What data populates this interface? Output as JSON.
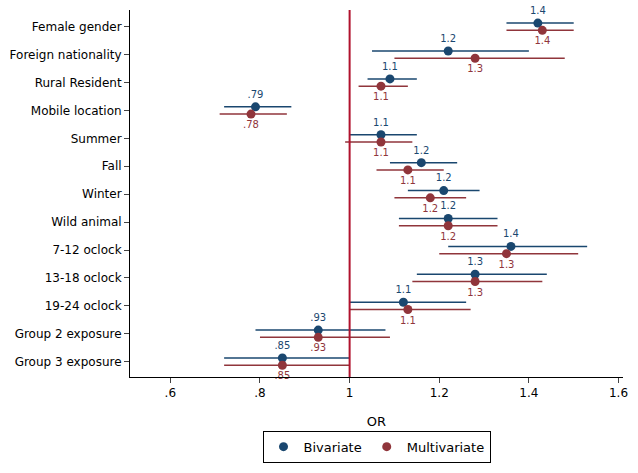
{
  "chart_data": {
    "type": "forest",
    "x_label": "OR",
    "categories": [
      "Female gender",
      "Foreign nationality",
      "Rural Resident",
      "Mobile location",
      "Summer",
      "Fall",
      "Winter",
      "Wild animal",
      "7-12 oclock",
      "13-18 oclock",
      "19-24 oclock",
      "Group 2 exposure",
      "Group 3 exposure"
    ],
    "series": [
      {
        "name": "Bivariate",
        "color": "#1a476f",
        "values": [
          1.42,
          1.22,
          1.09,
          0.79,
          1.07,
          1.16,
          1.21,
          1.22,
          1.36,
          1.28,
          1.12,
          0.93,
          0.85
        ],
        "value_labels": [
          "1.4",
          "1.2",
          "1.1",
          ".79",
          "1.1",
          "1.2",
          "1.2",
          "1.2",
          "1.4",
          "1.3",
          "1.1",
          ".93",
          ".85"
        ],
        "lower": [
          1.35,
          1.05,
          1.04,
          0.72,
          1.0,
          1.09,
          1.13,
          1.11,
          1.22,
          1.15,
          1.0,
          0.79,
          0.72
        ],
        "upper": [
          1.5,
          1.4,
          1.15,
          0.87,
          1.15,
          1.24,
          1.29,
          1.33,
          1.53,
          1.44,
          1.26,
          1.08,
          1.0
        ]
      },
      {
        "name": "Multivariate",
        "color": "#90353b",
        "values": [
          1.43,
          1.28,
          1.07,
          0.78,
          1.07,
          1.13,
          1.18,
          1.22,
          1.35,
          1.28,
          1.13,
          0.93,
          0.85
        ],
        "value_labels": [
          "1.4",
          "1.3",
          "1.1",
          ".78",
          "1.1",
          "1.1",
          "1.2",
          "1.2",
          "1.3",
          "1.3",
          "1.1",
          ".93",
          ".85"
        ],
        "lower": [
          1.35,
          1.1,
          1.02,
          0.71,
          0.99,
          1.06,
          1.1,
          1.11,
          1.2,
          1.14,
          1.0,
          0.8,
          0.72
        ],
        "upper": [
          1.5,
          1.48,
          1.13,
          0.86,
          1.14,
          1.21,
          1.26,
          1.33,
          1.51,
          1.43,
          1.27,
          1.09,
          1.0
        ]
      }
    ],
    "reference_line": 1,
    "xlim": [
      0.51,
      1.61
    ],
    "xticks": [
      {
        "value": 0.6,
        "label": ".6"
      },
      {
        "value": 0.8,
        "label": ".8"
      },
      1,
      1.2,
      1.4,
      1.6
    ],
    "data_labels": true,
    "grid": false,
    "legend": "bottom"
  }
}
